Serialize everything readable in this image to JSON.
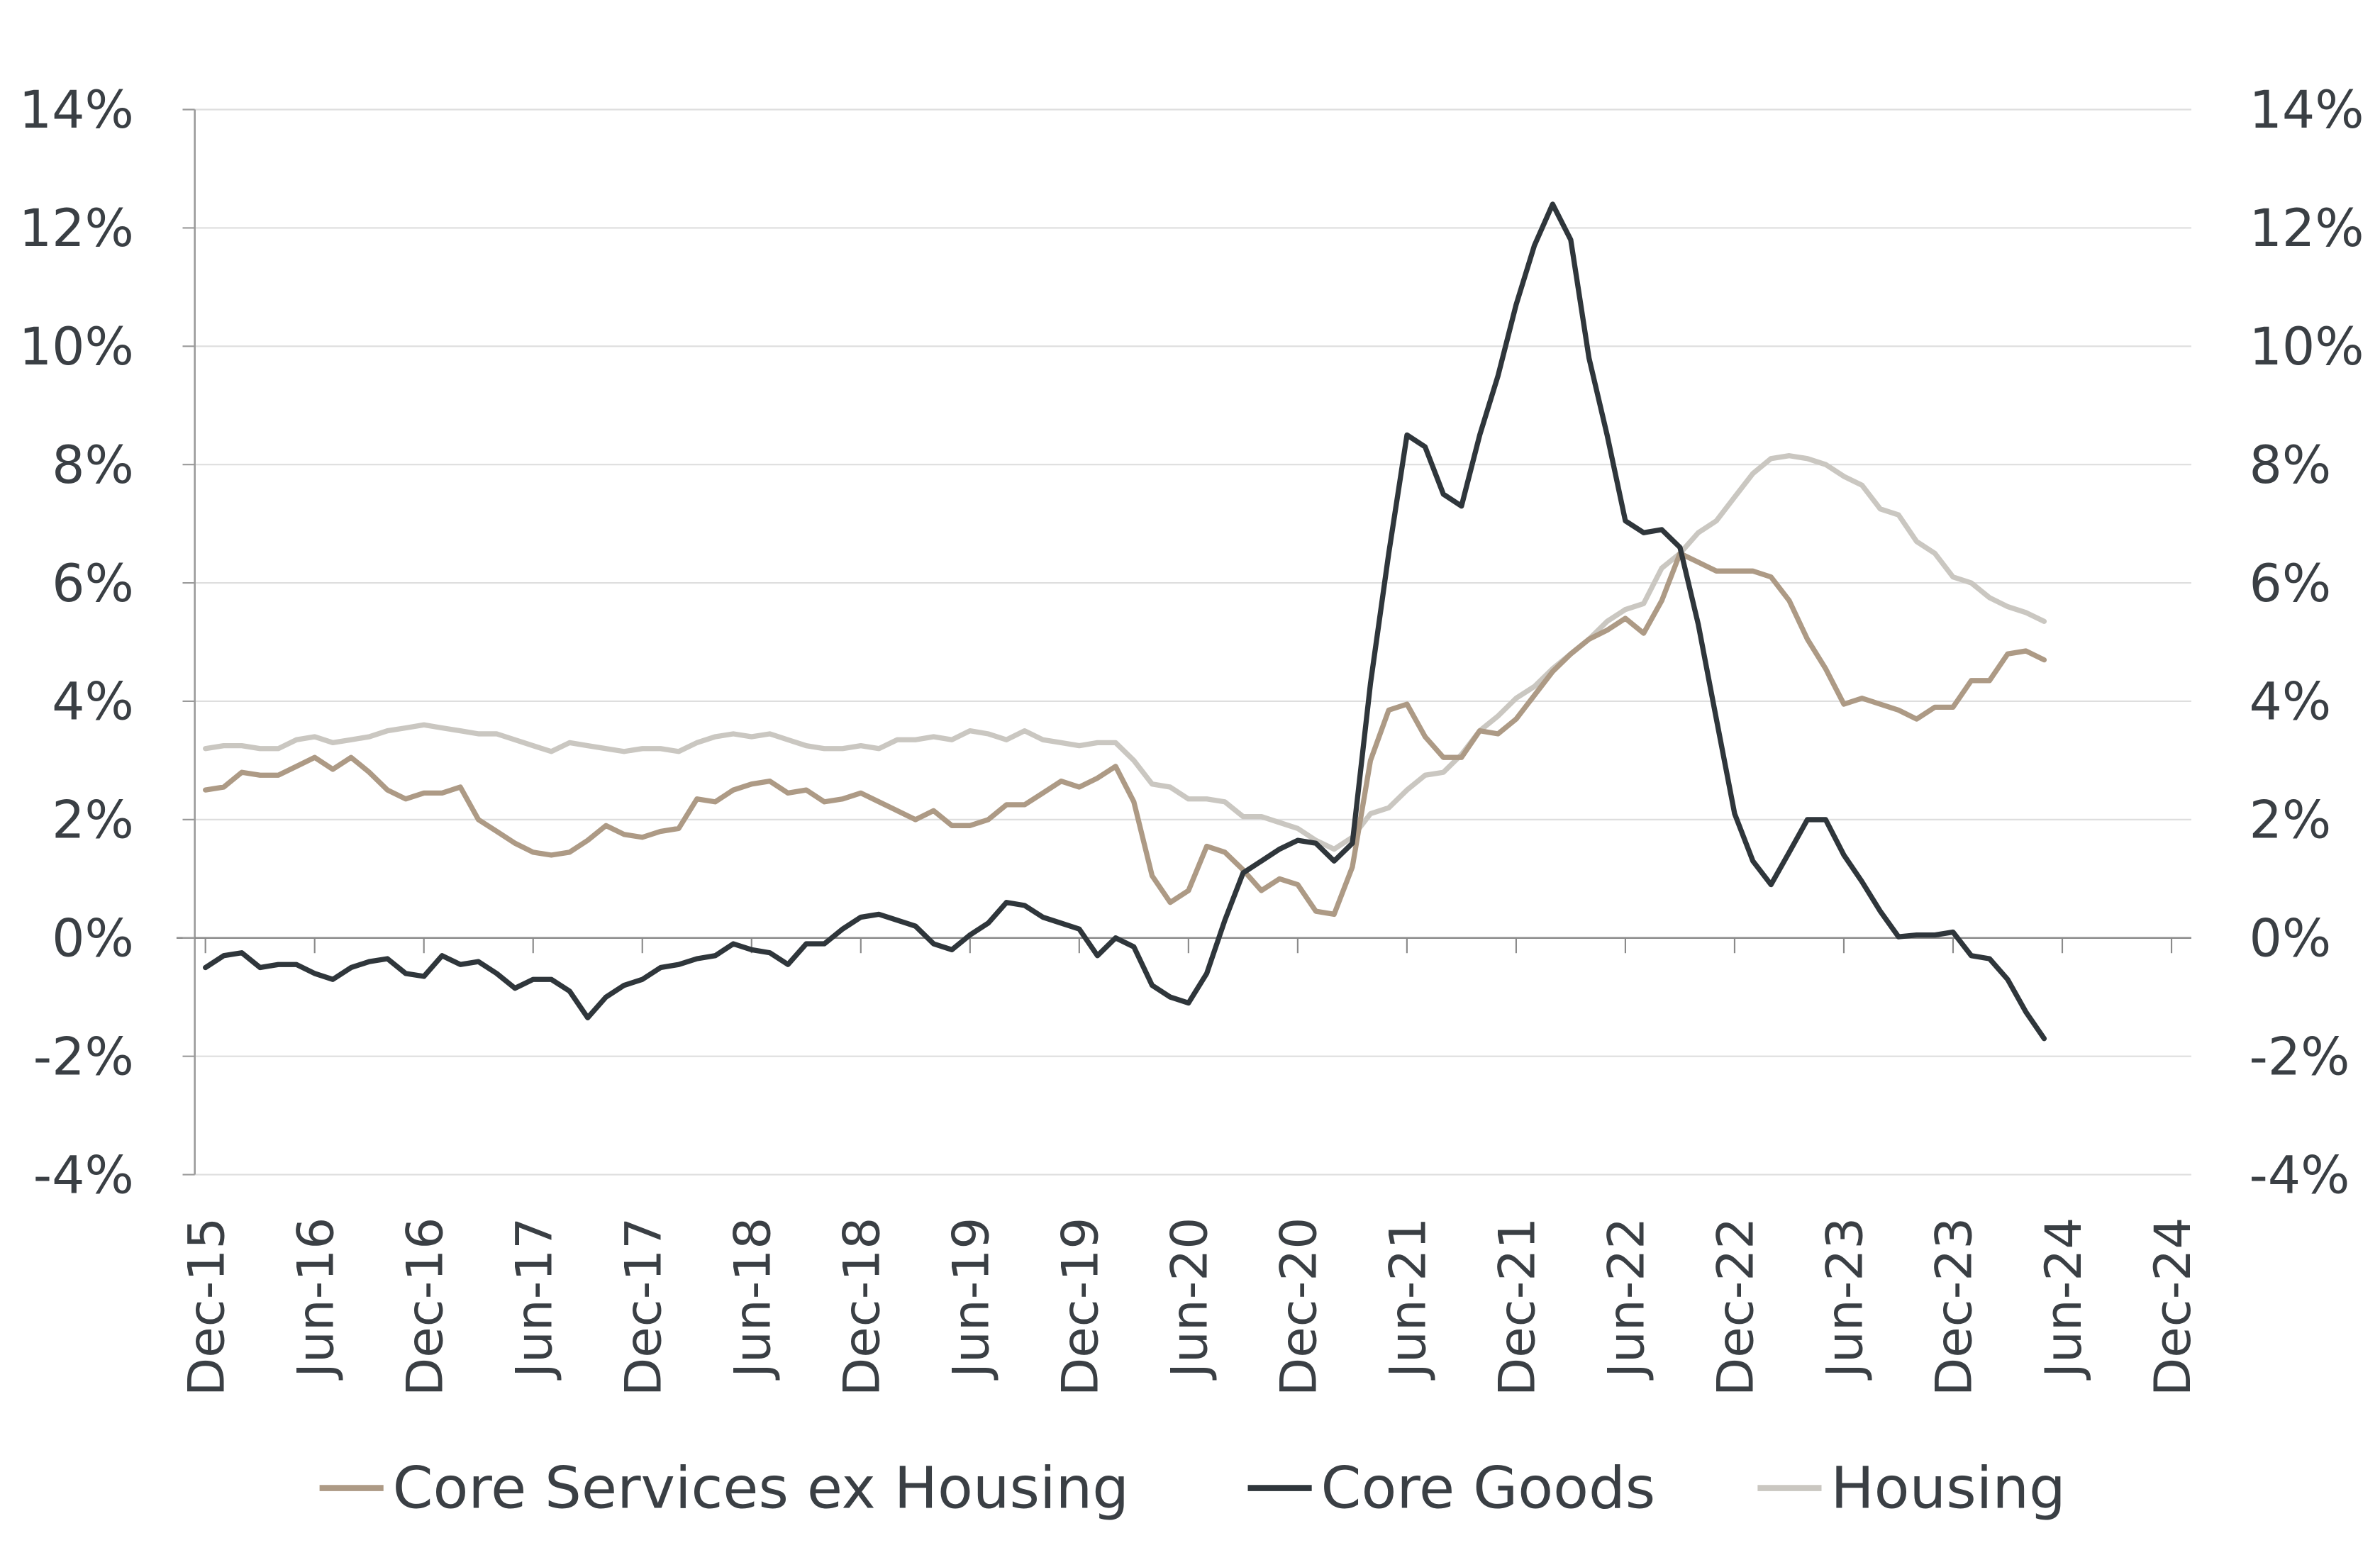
{
  "chart_data": {
    "type": "line",
    "title": "",
    "xlabel": "",
    "ylabel": "",
    "ylim": [
      -4,
      14
    ],
    "y_ticks": [
      "14%",
      "12%",
      "10%",
      "8%",
      "6%",
      "4%",
      "2%",
      "0%",
      "-2%",
      "-4%"
    ],
    "y_tick_values": [
      14,
      12,
      10,
      8,
      6,
      4,
      2,
      0,
      -2,
      -4
    ],
    "y2_ticks": [
      "14%",
      "12%",
      "10%",
      "8%",
      "6%",
      "4%",
      "2%",
      "0%",
      "-2%",
      "-4%"
    ],
    "x_ticks": [
      "Dec-15",
      "Jun-16",
      "Dec-16",
      "Jun-17",
      "Dec-17",
      "Jun-18",
      "Dec-18",
      "Jun-19",
      "Dec-19",
      "Jun-20",
      "Dec-20",
      "Jun-21",
      "Dec-21",
      "Jun-22",
      "Dec-22",
      "Jun-23",
      "Dec-23",
      "Jun-24",
      "Dec-24"
    ],
    "x_range": [
      "Dec-15",
      "Dec-24"
    ],
    "x_start": "Dec-15",
    "x_frequency": "monthly",
    "grid": "horizontal",
    "legend_position": "bottom",
    "series": [
      {
        "name": "Core Services ex Housing",
        "color": "#ad9a85",
        "values": [
          2.5,
          2.55,
          2.8,
          2.75,
          2.75,
          2.9,
          3.05,
          2.85,
          3.05,
          2.8,
          2.5,
          2.35,
          2.45,
          2.45,
          2.55,
          2.0,
          1.8,
          1.6,
          1.45,
          1.4,
          1.45,
          1.65,
          1.9,
          1.75,
          1.7,
          1.8,
          1.85,
          2.35,
          2.3,
          2.5,
          2.6,
          2.65,
          2.45,
          2.5,
          2.3,
          2.35,
          2.45,
          2.3,
          2.15,
          2.0,
          2.15,
          1.9,
          1.9,
          2.0,
          2.25,
          2.25,
          2.45,
          2.65,
          2.55,
          2.7,
          2.9,
          2.3,
          1.05,
          0.6,
          0.8,
          1.55,
          1.45,
          1.15,
          0.8,
          1.0,
          0.9,
          0.45,
          0.4,
          1.2,
          3.0,
          3.85,
          3.95,
          3.4,
          3.05,
          3.05,
          3.5,
          3.45,
          3.7,
          4.1,
          4.5,
          4.8,
          5.05,
          5.2,
          5.4,
          5.15,
          5.7,
          6.5,
          6.35,
          6.2,
          6.2,
          6.2,
          6.1,
          5.7,
          5.05,
          4.55,
          3.95,
          4.05,
          3.95,
          3.85,
          3.7,
          3.9,
          3.9,
          4.35,
          4.35,
          4.8,
          4.85,
          4.7
        ]
      },
      {
        "name": "Core Goods",
        "color": "#2f363b",
        "values": [
          -0.5,
          -0.3,
          -0.25,
          -0.5,
          -0.45,
          -0.45,
          -0.6,
          -0.7,
          -0.5,
          -0.4,
          -0.35,
          -0.6,
          -0.65,
          -0.3,
          -0.45,
          -0.4,
          -0.6,
          -0.85,
          -0.7,
          -0.7,
          -0.9,
          -1.35,
          -1.0,
          -0.8,
          -0.7,
          -0.5,
          -0.45,
          -0.35,
          -0.3,
          -0.1,
          -0.2,
          -0.25,
          -0.45,
          -0.1,
          -0.1,
          0.15,
          0.35,
          0.4,
          0.3,
          0.2,
          -0.1,
          -0.2,
          0.05,
          0.25,
          0.6,
          0.55,
          0.35,
          0.25,
          0.15,
          -0.3,
          0,
          -0.15,
          -0.8,
          -1.0,
          -1.1,
          -0.6,
          0.3,
          1.1,
          1.3,
          1.5,
          1.65,
          1.6,
          1.3,
          1.6,
          4.3,
          6.5,
          8.5,
          8.3,
          7.5,
          7.3,
          8.5,
          9.5,
          10.7,
          11.7,
          12.4,
          11.8,
          9.8,
          8.5,
          7.05,
          6.85,
          6.9,
          6.6,
          5.3,
          3.7,
          2.1,
          1.3,
          0.9,
          1.45,
          2.0,
          2.0,
          1.4,
          0.95,
          0.45,
          0.02,
          0.05,
          0.05,
          0.1,
          -0.3,
          -0.35,
          -0.7,
          -1.25,
          -1.7
        ]
      },
      {
        "name": "Housing",
        "color": "#cac7c1",
        "values": [
          3.2,
          3.25,
          3.25,
          3.2,
          3.2,
          3.35,
          3.4,
          3.3,
          3.35,
          3.4,
          3.5,
          3.55,
          3.6,
          3.55,
          3.5,
          3.45,
          3.45,
          3.35,
          3.25,
          3.15,
          3.3,
          3.25,
          3.2,
          3.15,
          3.2,
          3.2,
          3.15,
          3.3,
          3.4,
          3.45,
          3.4,
          3.45,
          3.35,
          3.25,
          3.2,
          3.2,
          3.25,
          3.2,
          3.35,
          3.35,
          3.4,
          3.35,
          3.5,
          3.45,
          3.35,
          3.5,
          3.35,
          3.3,
          3.25,
          3.3,
          3.3,
          3.0,
          2.6,
          2.55,
          2.35,
          2.35,
          2.3,
          2.05,
          2.05,
          1.95,
          1.85,
          1.65,
          1.5,
          1.7,
          2.1,
          2.2,
          2.5,
          2.75,
          2.8,
          3.1,
          3.5,
          3.75,
          4.05,
          4.25,
          4.55,
          4.8,
          5.05,
          5.35,
          5.55,
          5.65,
          6.25,
          6.5,
          6.85,
          7.05,
          7.45,
          7.85,
          8.1,
          8.15,
          8.1,
          8.0,
          7.8,
          7.65,
          7.25,
          7.15,
          6.7,
          6.5,
          6.1,
          6.0,
          5.75,
          5.6,
          5.5,
          5.35
        ]
      }
    ]
  }
}
